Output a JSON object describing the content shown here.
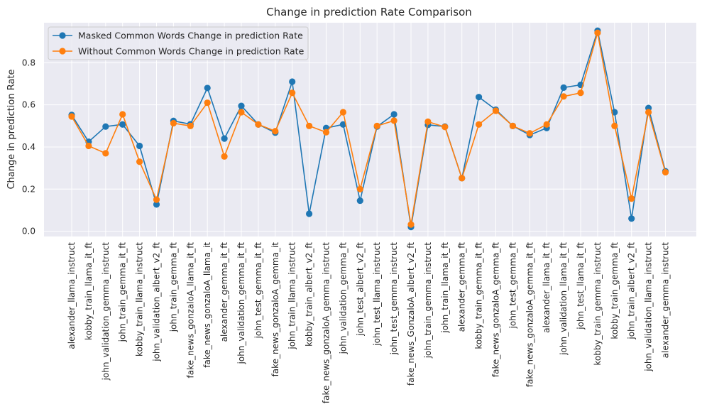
{
  "chart_data": {
    "type": "line",
    "title": "Change in prediction Rate Comparison",
    "xlabel": "",
    "ylabel": "Change in prediction Rate",
    "ylim": [
      -0.025,
      0.99
    ],
    "yticks": [
      0.0,
      0.2,
      0.4,
      0.6,
      0.8
    ],
    "ytick_labels": [
      "0.0",
      "0.2",
      "0.4",
      "0.6",
      "0.8"
    ],
    "grid": true,
    "legend_position": "top-left",
    "categories": [
      "alexander_llama_instruct",
      "kobby_train_llama_it_ft",
      "john_validation_gemma_instruct",
      "john_train_gemma_it_ft",
      "kobby_train_llama_instruct",
      "john_validation_albert_v2_ft",
      "john_train_gemma_ft",
      "fake_news_gonzaloA_llama_it_ft",
      "fake_news_gonzaloA_llama_it",
      "alexander_gemma_it_ft",
      "john_validation_gemma_it_ft",
      "john_test_gemma_it_ft",
      "fake_news_gonzaloA_gemma_it",
      "john_train_llama_instruct",
      "kobby_train_albert_v2_ft",
      "fake_news_gonzaloA_gemma_instruct",
      "john_validation_gemma_ft",
      "john_test_albert_v2_ft",
      "john_test_llama_instruct",
      "john_test_gemma_instruct",
      "fake_news_GonzaloA_albert_v2_ft",
      "john_train_gemma_instruct",
      "john_train_llama_it_ft",
      "alexander_gemma_ft",
      "kobby_train_gemma_it_ft",
      "fake_news_gonzaloA_gemma_ft",
      "john_test_gemma_ft",
      "fake_news_gonzaloA_gemma_it_ft",
      "alexander_llama_it_ft",
      "john_validation_llama_it_ft",
      "john_test_llama_it_ft",
      "kobby_train_gemma_instruct",
      "kobby_train_gemma_ft",
      "john_train_albert_v2_ft",
      "john_validation_llama_instruct",
      "alexander_gemma_instruct"
    ],
    "series": [
      {
        "name": "Masked Common Words Change in prediction Rate",
        "color": "#1f77b4",
        "values": [
          0.552,
          0.425,
          0.497,
          0.507,
          0.405,
          0.127,
          0.524,
          0.508,
          0.68,
          0.44,
          0.595,
          0.507,
          0.468,
          0.71,
          0.083,
          0.49,
          0.507,
          0.145,
          0.497,
          0.555,
          0.02,
          0.505,
          0.497,
          0.252,
          0.637,
          0.577,
          0.5,
          0.457,
          0.49,
          0.682,
          0.695,
          0.952,
          0.565,
          0.06,
          0.585,
          0.285
        ]
      },
      {
        "name": "Without Common Words Change in prediction Rate",
        "color": "#ff7f0e",
        "values": [
          0.545,
          0.405,
          0.37,
          0.555,
          0.33,
          0.15,
          0.513,
          0.5,
          0.61,
          0.355,
          0.565,
          0.507,
          0.475,
          0.657,
          0.5,
          0.47,
          0.565,
          0.2,
          0.5,
          0.525,
          0.032,
          0.52,
          0.495,
          0.252,
          0.507,
          0.572,
          0.5,
          0.465,
          0.507,
          0.64,
          0.657,
          0.942,
          0.5,
          0.155,
          0.565,
          0.28
        ]
      }
    ]
  }
}
